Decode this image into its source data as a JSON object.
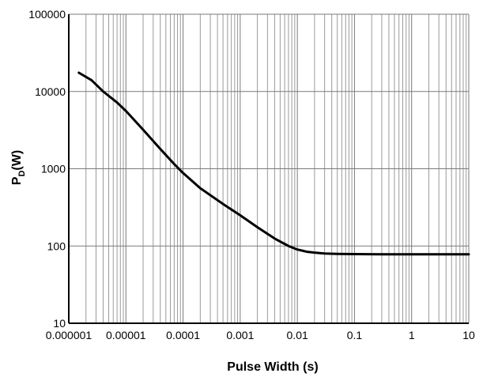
{
  "chart_data": {
    "type": "line",
    "title": "",
    "xlabel": "Pulse Width (s)",
    "ylabel_main": "P",
    "ylabel_sub": "D",
    "ylabel_unit": "(W)",
    "x_scale": "log",
    "y_scale": "log",
    "xlim": [
      1e-06,
      10
    ],
    "ylim": [
      10,
      100000
    ],
    "x_ticks": [
      {
        "value": 1e-06,
        "label": "0.000001"
      },
      {
        "value": 1e-05,
        "label": "0.00001"
      },
      {
        "value": 0.0001,
        "label": "0.0001"
      },
      {
        "value": 0.001,
        "label": "0.001"
      },
      {
        "value": 0.01,
        "label": "0.01"
      },
      {
        "value": 0.1,
        "label": "0.1"
      },
      {
        "value": 1,
        "label": "1"
      },
      {
        "value": 10,
        "label": "10"
      }
    ],
    "y_ticks": [
      {
        "value": 10,
        "label": "10"
      },
      {
        "value": 100,
        "label": "100"
      },
      {
        "value": 1000,
        "label": "1000"
      },
      {
        "value": 10000,
        "label": "10000"
      },
      {
        "value": 100000,
        "label": "100000"
      }
    ],
    "grid": true,
    "legend": "none",
    "line_color": "#000000",
    "series": [
      {
        "x": [
          1.5e-06,
          2.5e-06,
          4e-06,
          7e-06,
          1e-05,
          2e-05,
          4e-05,
          7e-05,
          0.0001,
          0.0002,
          0.0005,
          0.001,
          0.002,
          0.004,
          0.007,
          0.01,
          0.015,
          0.02,
          0.03,
          0.05,
          0.1,
          0.3,
          1,
          3,
          10
        ],
        "y": [
          17500,
          14000,
          10000,
          7200,
          5600,
          3200,
          1800,
          1150,
          880,
          560,
          350,
          250,
          175,
          125,
          100,
          90,
          84,
          82,
          80,
          79,
          78.5,
          78,
          78,
          78,
          78
        ]
      }
    ]
  }
}
